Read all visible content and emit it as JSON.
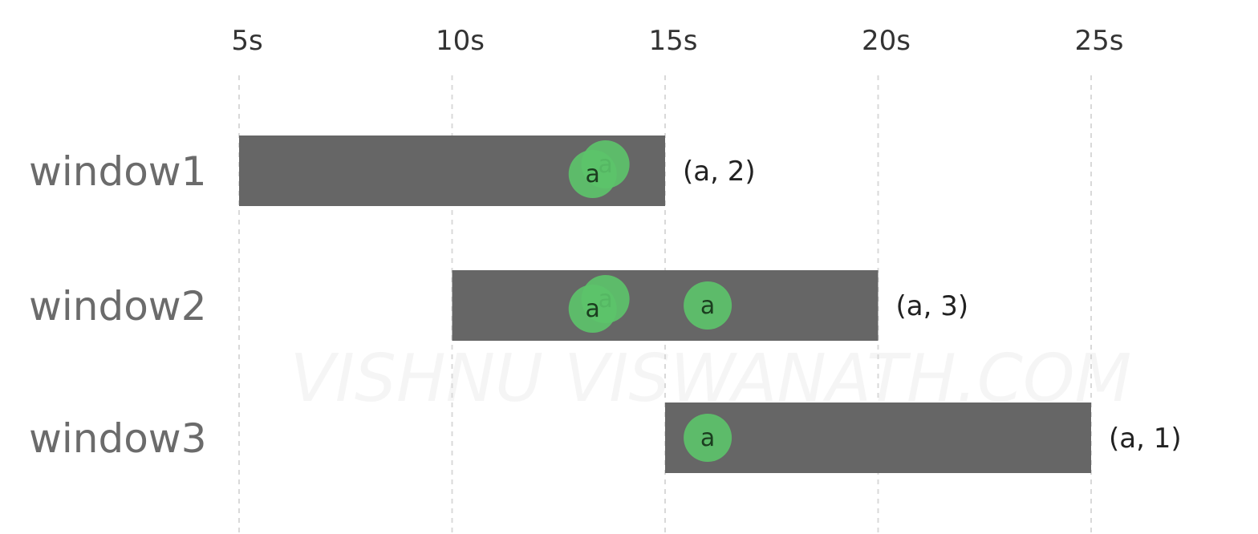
{
  "diagram": {
    "watermark": "VISHNU VISWANATH.COM",
    "colors": {
      "window_bar": "#666666",
      "event_fill": "#5cc46a",
      "gridline": "#d9d9d9"
    },
    "time_ticks": [
      {
        "value": 5,
        "label": "5s"
      },
      {
        "value": 10,
        "label": "10s"
      },
      {
        "value": 15,
        "label": "15s"
      },
      {
        "value": 20,
        "label": "20s"
      },
      {
        "value": 25,
        "label": "25s"
      }
    ],
    "windows": [
      {
        "label": "window1",
        "start": 5,
        "end": 15,
        "result": "(a, 2)",
        "events": [
          {
            "key": "a",
            "time": 13.6
          },
          {
            "key": "a",
            "time": 13.3
          }
        ]
      },
      {
        "label": "window2",
        "start": 10,
        "end": 20,
        "result": "(a, 3)",
        "events": [
          {
            "key": "a",
            "time": 13.6
          },
          {
            "key": "a",
            "time": 13.3
          },
          {
            "key": "a",
            "time": 16.0
          }
        ]
      },
      {
        "label": "window3",
        "start": 15,
        "end": 25,
        "result": "(a, 1)",
        "events": [
          {
            "key": "a",
            "time": 16.0
          }
        ]
      }
    ]
  }
}
